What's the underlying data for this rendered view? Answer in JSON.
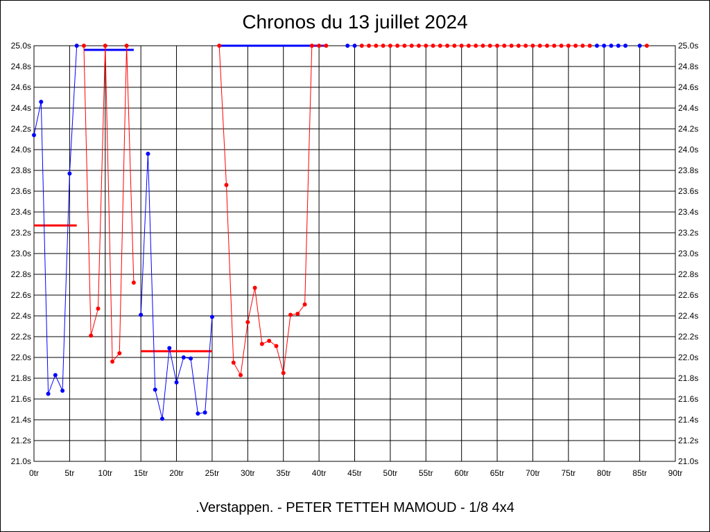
{
  "chart_data": {
    "type": "line",
    "title": "Chronos du 13 juillet 2024",
    "footer": ".Verstappen. - PETER TETTEH MAMOUD - 1/8 4x4",
    "xlim": [
      0,
      90
    ],
    "ylim": [
      21.0,
      25.0
    ],
    "x_ticks": [
      0,
      5,
      10,
      15,
      20,
      25,
      30,
      35,
      40,
      45,
      50,
      55,
      60,
      65,
      70,
      75,
      80,
      85,
      90
    ],
    "x_tick_labels": [
      "0tr",
      "5tr",
      "10tr",
      "15tr",
      "20tr",
      "25tr",
      "30tr",
      "35tr",
      "40tr",
      "45tr",
      "50tr",
      "55tr",
      "60tr",
      "65tr",
      "70tr",
      "75tr",
      "80tr",
      "85tr",
      "90tr"
    ],
    "y_ticks": [
      21.0,
      21.2,
      21.4,
      21.6,
      21.8,
      22.0,
      22.2,
      22.4,
      22.6,
      22.8,
      23.0,
      23.2,
      23.4,
      23.6,
      23.8,
      24.0,
      24.2,
      24.4,
      24.6,
      24.8,
      25.0
    ],
    "y_tick_labels": [
      "21.0s",
      "21.2s",
      "21.4s",
      "21.6s",
      "21.8s",
      "22.0s",
      "22.2s",
      "22.4s",
      "22.6s",
      "22.8s",
      "23.0s",
      "23.2s",
      "23.4s",
      "23.6s",
      "23.8s",
      "24.0s",
      "24.2s",
      "24.4s",
      "24.6s",
      "24.8s",
      "25.0s"
    ],
    "grid": true,
    "colors": {
      "blue": "#0000ff",
      "red": "#ff0000",
      "grid": "#000000"
    },
    "series": [
      {
        "color": "#0000ff",
        "x": [
          0,
          1,
          2,
          3,
          4,
          5,
          6
        ],
        "y": [
          24.14,
          24.46,
          21.65,
          21.83,
          21.68,
          23.77,
          25.0
        ]
      },
      {
        "color": "#ff0000",
        "x": [
          7,
          8,
          9,
          10,
          11,
          12,
          13,
          14
        ],
        "y": [
          25.0,
          22.21,
          22.47,
          25.0,
          21.96,
          22.04,
          25.0,
          22.72
        ]
      },
      {
        "color": "#0000ff",
        "x": [
          15,
          16,
          17,
          18,
          19,
          20,
          21,
          22,
          23,
          24,
          25
        ],
        "y": [
          22.41,
          23.96,
          21.69,
          21.41,
          22.09,
          21.76,
          22.0,
          21.99,
          21.46,
          21.47,
          22.39
        ]
      },
      {
        "color": "#ff0000",
        "x": [
          26,
          27,
          28,
          29,
          30,
          31,
          32,
          33,
          34,
          35,
          36,
          37,
          38,
          39,
          40,
          41
        ],
        "y": [
          25.0,
          23.66,
          21.95,
          21.83,
          22.34,
          22.67,
          22.13,
          22.16,
          22.11,
          21.85,
          22.41,
          22.42,
          22.51,
          25.0,
          25.0,
          25.0
        ]
      },
      {
        "color": "#0000ff",
        "x": [
          44,
          45
        ],
        "y": [
          25.0,
          25.0
        ]
      },
      {
        "color": "#ff0000",
        "x": [
          46,
          47,
          48,
          49,
          50,
          51,
          52,
          53,
          54,
          55,
          56,
          57,
          58,
          59,
          60,
          61,
          62,
          63,
          64,
          65,
          66,
          67,
          68,
          69,
          70,
          71,
          72,
          73,
          74,
          75,
          76,
          77,
          78
        ],
        "y": [
          25.0,
          25.0,
          25.0,
          25.0,
          25.0,
          25.0,
          25.0,
          25.0,
          25.0,
          25.0,
          25.0,
          25.0,
          25.0,
          25.0,
          25.0,
          25.0,
          25.0,
          25.0,
          25.0,
          25.0,
          25.0,
          25.0,
          25.0,
          25.0,
          25.0,
          25.0,
          25.0,
          25.0,
          25.0,
          25.0,
          25.0,
          25.0,
          25.0
        ]
      },
      {
        "color": "#0000ff",
        "x": [
          79,
          80,
          81,
          82,
          83
        ],
        "y": [
          25.0,
          25.0,
          25.0,
          25.0,
          25.0
        ]
      },
      {
        "color": "#0000ff",
        "x": [
          85
        ],
        "y": [
          25.0
        ]
      },
      {
        "color": "#ff0000",
        "x": [
          86
        ],
        "y": [
          25.0
        ]
      }
    ],
    "average_lines": [
      {
        "color": "#ff0000",
        "x": [
          0,
          6
        ],
        "y": 23.27
      },
      {
        "color": "#0000ff",
        "x": [
          7,
          14
        ],
        "y": 24.96
      },
      {
        "color": "#ff0000",
        "x": [
          15,
          25
        ],
        "y": 22.06
      },
      {
        "color": "#0000ff",
        "x": [
          26,
          41
        ],
        "y": 25.0
      }
    ]
  }
}
